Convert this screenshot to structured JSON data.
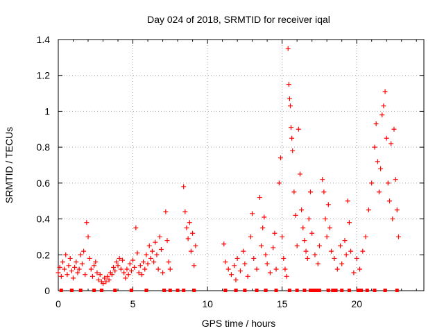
{
  "chart_data": {
    "type": "scatter",
    "title": "Day 024 of 2018, SRMTID for receiver iqal",
    "xlabel": "GPS time / hours",
    "ylabel": "SRMTID / TECUs",
    "xlim": [
      0,
      24.5
    ],
    "ylim": [
      0,
      1.4
    ],
    "xticks": [
      "0",
      "5",
      "10",
      "15",
      "20"
    ],
    "xtick_values": [
      0,
      5,
      10,
      15,
      20
    ],
    "yticks": [
      "0",
      "0.2",
      "0.4",
      "0.6",
      "0.8",
      "1",
      "1.2",
      "1.4"
    ],
    "ytick_values": [
      0,
      0.2,
      0.4,
      0.6,
      0.8,
      1.0,
      1.2,
      1.4
    ],
    "grid": true,
    "marker": "+",
    "color": "#ff0000",
    "series": [
      {
        "name": "SRMTID",
        "points": [
          [
            0.0,
            0.1
          ],
          [
            0.1,
            0.13
          ],
          [
            0.2,
            0.08
          ],
          [
            0.3,
            0.16
          ],
          [
            0.4,
            0.12
          ],
          [
            0.5,
            0.2
          ],
          [
            0.6,
            0.09
          ],
          [
            0.7,
            0.14
          ],
          [
            0.8,
            0.18
          ],
          [
            0.9,
            0.11
          ],
          [
            1.0,
            0.07
          ],
          [
            1.1,
            0.13
          ],
          [
            1.2,
            0.16
          ],
          [
            1.3,
            0.1
          ],
          [
            1.4,
            0.12
          ],
          [
            1.5,
            0.2
          ],
          [
            1.6,
            0.15
          ],
          [
            1.7,
            0.22
          ],
          [
            1.8,
            0.09
          ],
          [
            1.9,
            0.38
          ],
          [
            2.0,
            0.3
          ],
          [
            2.1,
            0.18
          ],
          [
            2.2,
            0.12
          ],
          [
            2.3,
            0.08
          ],
          [
            2.4,
            0.14
          ],
          [
            2.5,
            0.16
          ],
          [
            2.6,
            0.1
          ],
          [
            2.7,
            0.06
          ],
          [
            2.8,
            0.09
          ],
          [
            2.9,
            0.05
          ],
          [
            3.0,
            0.04
          ],
          [
            3.1,
            0.07
          ],
          [
            3.2,
            0.05
          ],
          [
            3.3,
            0.08
          ],
          [
            3.4,
            0.06
          ],
          [
            3.5,
            0.1
          ],
          [
            3.6,
            0.09
          ],
          [
            3.7,
            0.13
          ],
          [
            3.8,
            0.11
          ],
          [
            3.9,
            0.16
          ],
          [
            4.0,
            0.14
          ],
          [
            4.1,
            0.18
          ],
          [
            4.2,
            0.12
          ],
          [
            4.3,
            0.17
          ],
          [
            4.4,
            0.1
          ],
          [
            4.5,
            0.07
          ],
          [
            4.6,
            0.12
          ],
          [
            4.7,
            0.09
          ],
          [
            4.8,
            0.15
          ],
          [
            4.9,
            0.11
          ],
          [
            5.0,
            0.17
          ],
          [
            5.1,
            0.13
          ],
          [
            5.2,
            0.35
          ],
          [
            5.3,
            0.21
          ],
          [
            5.4,
            0.1
          ],
          [
            5.5,
            0.14
          ],
          [
            5.6,
            0.09
          ],
          [
            5.7,
            0.16
          ],
          [
            5.8,
            0.12
          ],
          [
            5.9,
            0.2
          ],
          [
            6.0,
            0.15
          ],
          [
            6.1,
            0.25
          ],
          [
            6.2,
            0.18
          ],
          [
            6.3,
            0.22
          ],
          [
            6.4,
            0.16
          ],
          [
            6.5,
            0.27
          ],
          [
            6.6,
            0.2
          ],
          [
            6.7,
            0.12
          ],
          [
            6.8,
            0.3
          ],
          [
            6.9,
            0.23
          ],
          [
            7.0,
            0.1
          ],
          [
            7.2,
            0.44
          ],
          [
            7.3,
            0.28
          ],
          [
            7.4,
            0.16
          ],
          [
            7.5,
            0.12
          ],
          [
            8.4,
            0.58
          ],
          [
            8.5,
            0.44
          ],
          [
            8.6,
            0.35
          ],
          [
            8.7,
            0.29
          ],
          [
            8.8,
            0.38
          ],
          [
            8.9,
            0.22
          ],
          [
            9.0,
            0.32
          ],
          [
            9.1,
            0.14
          ],
          [
            9.2,
            0.25
          ],
          [
            11.1,
            0.26
          ],
          [
            11.2,
            0.16
          ],
          [
            11.4,
            0.12
          ],
          [
            11.6,
            0.09
          ],
          [
            11.8,
            0.14
          ],
          [
            11.9,
            0.06
          ],
          [
            12.0,
            0.18
          ],
          [
            12.2,
            0.11
          ],
          [
            12.4,
            0.22
          ],
          [
            12.5,
            0.15
          ],
          [
            12.7,
            0.08
          ],
          [
            12.9,
            0.3
          ],
          [
            13.0,
            0.43
          ],
          [
            13.1,
            0.18
          ],
          [
            13.3,
            0.12
          ],
          [
            13.5,
            0.52
          ],
          [
            13.6,
            0.25
          ],
          [
            13.7,
            0.35
          ],
          [
            13.8,
            0.41
          ],
          [
            13.9,
            0.2
          ],
          [
            14.0,
            0.15
          ],
          [
            14.2,
            0.1
          ],
          [
            14.4,
            0.24
          ],
          [
            14.5,
            0.32
          ],
          [
            14.6,
            0.12
          ],
          [
            14.8,
            0.6
          ],
          [
            14.9,
            0.74
          ],
          [
            15.0,
            0.3
          ],
          [
            15.1,
            0.18
          ],
          [
            15.2,
            0.12
          ],
          [
            15.3,
            0.08
          ],
          [
            15.4,
            1.35
          ],
          [
            15.45,
            1.15
          ],
          [
            15.5,
            1.07
          ],
          [
            15.55,
            1.03
          ],
          [
            15.6,
            0.91
          ],
          [
            15.65,
            0.85
          ],
          [
            15.7,
            0.78
          ],
          [
            15.8,
            0.55
          ],
          [
            15.9,
            0.42
          ],
          [
            16.0,
            0.25
          ],
          [
            16.1,
            0.9
          ],
          [
            16.2,
            0.65
          ],
          [
            16.3,
            0.45
          ],
          [
            16.4,
            0.35
          ],
          [
            16.5,
            0.28
          ],
          [
            16.6,
            0.22
          ],
          [
            16.7,
            0.18
          ],
          [
            16.8,
            0.4
          ],
          [
            16.9,
            0.55
          ],
          [
            17.0,
            0.32
          ],
          [
            17.2,
            0.2
          ],
          [
            17.4,
            0.15
          ],
          [
            17.5,
            0.25
          ],
          [
            17.7,
            0.62
          ],
          [
            17.8,
            0.55
          ],
          [
            17.9,
            0.4
          ],
          [
            18.0,
            0.3
          ],
          [
            18.1,
            0.48
          ],
          [
            18.2,
            0.35
          ],
          [
            18.3,
            0.22
          ],
          [
            18.5,
            0.18
          ],
          [
            18.7,
            0.12
          ],
          [
            18.9,
            0.25
          ],
          [
            19.0,
            0.15
          ],
          [
            19.2,
            0.28
          ],
          [
            19.3,
            0.2
          ],
          [
            19.4,
            0.5
          ],
          [
            19.5,
            0.38
          ],
          [
            19.6,
            0.22
          ],
          [
            19.8,
            0.1
          ],
          [
            20.0,
            0.18
          ],
          [
            20.2,
            0.12
          ],
          [
            20.4,
            0.22
          ],
          [
            20.6,
            0.3
          ],
          [
            20.8,
            0.45
          ],
          [
            21.0,
            0.6
          ],
          [
            21.2,
            0.8
          ],
          [
            21.3,
            0.93
          ],
          [
            21.4,
            0.72
          ],
          [
            21.5,
            0.55
          ],
          [
            21.6,
            0.68
          ],
          [
            21.7,
            0.98
          ],
          [
            21.8,
            1.03
          ],
          [
            21.9,
            1.11
          ],
          [
            22.0,
            0.85
          ],
          [
            22.1,
            0.6
          ],
          [
            22.2,
            0.5
          ],
          [
            22.3,
            0.82
          ],
          [
            22.4,
            0.4
          ],
          [
            22.5,
            0.9
          ],
          [
            22.6,
            0.62
          ],
          [
            22.7,
            0.45
          ],
          [
            22.8,
            0.3
          ]
        ]
      }
    ],
    "zero_markers_x": [
      0.2,
      0.9,
      1.5,
      2.4,
      2.9,
      3.8,
      4.9,
      5.9,
      7.1,
      7.5,
      8.0,
      8.4,
      9.1,
      11.2,
      11.9,
      12.5,
      13.3,
      13.9,
      14.6,
      15.5,
      16.0,
      16.5,
      16.9,
      17.0,
      17.1,
      17.2,
      17.3,
      17.4,
      17.5,
      18.1,
      18.4,
      18.6,
      19.0,
      19.5,
      20.1,
      20.3,
      20.7,
      21.2,
      21.9,
      22.7
    ]
  }
}
